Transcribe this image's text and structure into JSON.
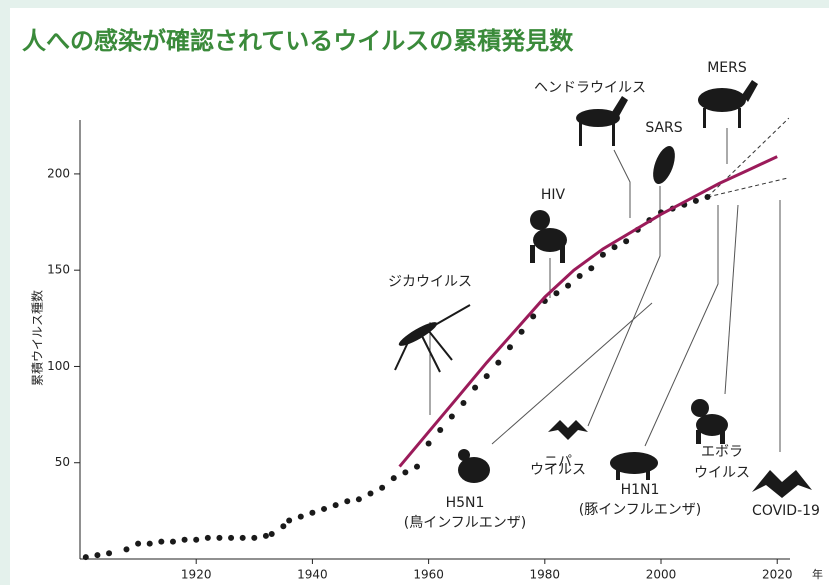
{
  "chart_data": {
    "type": "scatter",
    "title": "人への感染が確認されているウイルスの累積発見数",
    "y_label": "累積ウイルス種数",
    "x_unit": "年",
    "x": [
      1901,
      1903,
      1905,
      1908,
      1910,
      1912,
      1914,
      1916,
      1918,
      1920,
      1922,
      1924,
      1926,
      1928,
      1930,
      1932,
      1933,
      1935,
      1936,
      1938,
      1940,
      1942,
      1944,
      1946,
      1948,
      1950,
      1952,
      1954,
      1956,
      1958,
      1960,
      1962,
      1964,
      1966,
      1968,
      1970,
      1972,
      1974,
      1976,
      1978,
      1980,
      1982,
      1984,
      1986,
      1988,
      1990,
      1992,
      1994,
      1996,
      1998,
      2000,
      2002,
      2004,
      2006,
      2008
    ],
    "values": [
      1,
      2,
      3,
      5,
      8,
      8,
      9,
      9,
      10,
      10,
      11,
      11,
      11,
      11,
      11,
      12,
      13,
      17,
      20,
      22,
      24,
      26,
      28,
      30,
      31,
      34,
      37,
      42,
      45,
      48,
      60,
      67,
      74,
      81,
      89,
      95,
      102,
      110,
      118,
      126,
      134,
      138,
      142,
      147,
      151,
      158,
      162,
      165,
      171,
      176,
      180,
      182,
      184,
      186,
      188
    ],
    "color": "#1a1a1a",
    "fit": {
      "x": [
        1955,
        1960,
        1965,
        1970,
        1975,
        1980,
        1985,
        1990,
        1995,
        2000,
        2005,
        2010,
        2015,
        2020
      ],
      "values": [
        48,
        66,
        84,
        102,
        119,
        136,
        150,
        161,
        170,
        179,
        187,
        195,
        202,
        209
      ],
      "color": "#9b1b5a"
    },
    "projections": [
      {
        "x": [
          2008,
          2022
        ],
        "values": [
          188,
          229
        ]
      },
      {
        "x": [
          2008,
          2022
        ],
        "values": [
          188,
          198
        ]
      }
    ],
    "xlim": [
      1900,
      2022.2
    ],
    "ylim": [
      0,
      228
    ],
    "xticks": [
      1920,
      1940,
      1960,
      1980,
      2000,
      2020
    ],
    "yticks": [
      50,
      100,
      150,
      200
    ],
    "annotations": [
      "ジカウイルス",
      "HIV",
      "ヘンドラウイルス",
      "SARS",
      "MERS",
      "H5N1",
      "(鳥インフルエンザ)",
      "ニパ",
      "ウイルス",
      "H1N1",
      "(豚インフルエンザ)",
      "エボラ",
      "ウイルス",
      "COVID-19"
    ]
  }
}
